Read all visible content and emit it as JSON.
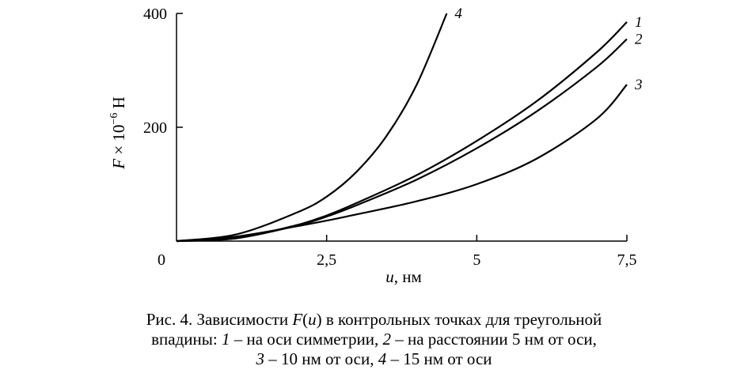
{
  "chart_data": {
    "type": "line",
    "xlabel_var": "u",
    "xlabel_unit": ", нм",
    "ylabel_var": "F",
    "ylabel_rest": " × 10",
    "ylabel_exp": "−6",
    "ylabel_unit": " Н",
    "xlim": [
      0,
      7.5
    ],
    "ylim": [
      0,
      400
    ],
    "x_ticks": [
      {
        "value": 0,
        "label": "0"
      },
      {
        "value": 2.5,
        "label": "2,5"
      },
      {
        "value": 5,
        "label": "5"
      },
      {
        "value": 7.5,
        "label": "7,5"
      }
    ],
    "y_ticks": [
      {
        "value": 200,
        "label": "200"
      },
      {
        "value": 400,
        "label": "400"
      }
    ],
    "series": [
      {
        "name": "1",
        "x": [
          0,
          1,
          2,
          2.5,
          3,
          4,
          5,
          6,
          7,
          7.5
        ],
        "y": [
          0,
          5,
          28,
          45,
          67,
          116,
          176,
          246,
          332,
          385
        ]
      },
      {
        "name": "2",
        "x": [
          0,
          1,
          2,
          2.5,
          3,
          4,
          5,
          6,
          7,
          7.5
        ],
        "y": [
          0,
          5,
          27,
          43,
          63,
          108,
          163,
          228,
          306,
          355
        ]
      },
      {
        "name": "3",
        "x": [
          0,
          1,
          2,
          2.5,
          3,
          4,
          5,
          6,
          7,
          7.5
        ],
        "y": [
          0,
          8,
          26,
          36,
          47,
          70,
          100,
          145,
          215,
          275
        ]
      },
      {
        "name": "4",
        "x": [
          0,
          1,
          2,
          2.5,
          3,
          3.5,
          4,
          4.5
        ],
        "y": [
          0,
          12,
          50,
          78,
          122,
          185,
          275,
          400
        ]
      }
    ]
  },
  "caption": {
    "line1_a": "Рис. 4. Зависимости ",
    "line1_f": "F",
    "line1_b": "(",
    "line1_u": "u",
    "line1_c": ") в контрольных точках для треугольной",
    "line2_a": "впадины: ",
    "line2_n1": "1",
    "line2_b": " – на оси симметрии, ",
    "line2_n2": "2",
    "line2_c": " – на расстоянии 5 нм от оси,",
    "line3_n3": "3",
    "line3_a": " – 10 нм от оси, ",
    "line3_n4": "4",
    "line3_b": " – 15 нм от оси"
  }
}
